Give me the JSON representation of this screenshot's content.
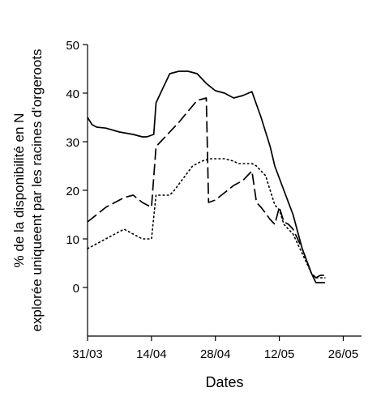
{
  "chart_data": {
    "type": "line",
    "title": "",
    "xlabel": "Dates",
    "ylabel_lines": [
      "% de la disponibilité en N",
      "explorée uniqueent par les racines d'orgeroots"
    ],
    "ylim": [
      -10,
      50
    ],
    "yticks": [
      0,
      10,
      20,
      30,
      40,
      50
    ],
    "xlim": [
      0,
      60
    ],
    "xticks": [
      {
        "pos": 0,
        "label": "31/03"
      },
      {
        "pos": 14,
        "label": "14/04"
      },
      {
        "pos": 28,
        "label": "28/04"
      },
      {
        "pos": 42,
        "label": "12/05"
      },
      {
        "pos": 56,
        "label": "26/05"
      }
    ],
    "grid": false,
    "legend": "none",
    "series": [
      {
        "style": "solid",
        "color": "#000000",
        "points": [
          [
            0,
            35
          ],
          [
            1,
            33.5
          ],
          [
            2,
            33
          ],
          [
            4,
            32.8
          ],
          [
            7,
            32
          ],
          [
            10,
            31.5
          ],
          [
            12,
            31
          ],
          [
            13,
            31
          ],
          [
            14.5,
            31.5
          ],
          [
            15,
            38
          ],
          [
            16,
            40
          ],
          [
            18,
            44
          ],
          [
            20,
            44.5
          ],
          [
            22,
            44.5
          ],
          [
            24,
            44
          ],
          [
            26,
            42
          ],
          [
            28,
            40.5
          ],
          [
            30,
            40
          ],
          [
            32,
            39
          ],
          [
            34,
            39.5
          ],
          [
            36,
            40.3
          ],
          [
            38,
            35
          ],
          [
            40,
            29
          ],
          [
            41,
            25
          ],
          [
            43,
            20
          ],
          [
            45,
            15
          ],
          [
            47,
            8
          ],
          [
            49,
            3
          ],
          [
            50,
            1
          ],
          [
            51,
            1
          ],
          [
            52,
            1
          ]
        ]
      },
      {
        "style": "dashed",
        "color": "#000000",
        "points": [
          [
            0,
            13.5
          ],
          [
            2,
            15
          ],
          [
            4,
            16.5
          ],
          [
            6,
            17.5
          ],
          [
            8,
            18.5
          ],
          [
            10,
            19
          ],
          [
            12,
            17.5
          ],
          [
            14,
            16.5
          ],
          [
            15,
            29
          ],
          [
            17,
            31
          ],
          [
            20,
            34
          ],
          [
            24,
            38.5
          ],
          [
            26,
            39
          ],
          [
            26.5,
            17.5
          ],
          [
            28,
            18
          ],
          [
            30,
            19.5
          ],
          [
            32,
            21
          ],
          [
            34,
            22
          ],
          [
            35,
            23
          ],
          [
            36,
            24
          ],
          [
            37,
            17.5
          ],
          [
            38,
            16.5
          ],
          [
            40,
            14
          ],
          [
            41,
            13
          ],
          [
            42,
            16.5
          ],
          [
            43,
            13.5
          ],
          [
            44,
            13
          ],
          [
            45,
            12
          ],
          [
            47,
            8
          ],
          [
            49,
            3
          ],
          [
            50,
            2
          ],
          [
            51,
            2.5
          ],
          [
            52,
            2.5
          ]
        ]
      },
      {
        "style": "dotted",
        "color": "#000000",
        "points": [
          [
            0,
            8
          ],
          [
            2,
            9
          ],
          [
            4,
            10
          ],
          [
            6,
            11
          ],
          [
            8,
            12
          ],
          [
            10,
            11
          ],
          [
            12,
            10
          ],
          [
            14,
            10
          ],
          [
            15,
            19
          ],
          [
            17,
            19
          ],
          [
            18,
            19
          ],
          [
            19,
            20
          ],
          [
            21,
            22.5
          ],
          [
            23,
            25
          ],
          [
            25,
            26
          ],
          [
            27,
            26.5
          ],
          [
            30,
            26.5
          ],
          [
            32,
            26
          ],
          [
            33,
            25.5
          ],
          [
            34,
            25.5
          ],
          [
            36,
            25.5
          ],
          [
            37,
            25
          ],
          [
            39,
            23
          ],
          [
            40,
            20
          ],
          [
            41,
            17
          ],
          [
            42,
            16
          ],
          [
            43,
            13
          ],
          [
            45,
            11
          ],
          [
            47,
            7
          ],
          [
            49,
            3
          ],
          [
            50,
            2
          ],
          [
            51,
            2
          ],
          [
            52,
            2
          ]
        ]
      }
    ]
  }
}
